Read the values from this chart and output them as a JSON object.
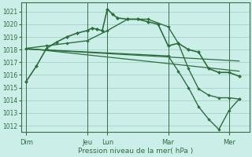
{
  "bg_color": "#cceee8",
  "grid_color": "#99ccbb",
  "line_color": "#2d6e3e",
  "ylabel": "Pression niveau de la mer( hPa )",
  "ylim": [
    1011.5,
    1021.7
  ],
  "yticks": [
    1012,
    1013,
    1014,
    1015,
    1016,
    1017,
    1018,
    1019,
    1020,
    1021
  ],
  "day_labels": [
    "Dim",
    "Jeu",
    "Lun",
    "Mar",
    "Mer"
  ],
  "day_tick_x": [
    0,
    24,
    32,
    56,
    80
  ],
  "xlim": [
    -2,
    88
  ],
  "vline_positions": [
    0,
    24,
    32,
    56,
    80
  ],
  "line1_x": [
    0,
    4,
    8,
    12,
    16,
    20,
    24,
    26,
    28,
    30,
    32,
    34,
    36,
    40,
    44,
    48,
    52,
    56,
    60,
    64,
    68,
    72,
    76,
    80,
    84
  ],
  "line1_y": [
    1015.5,
    1016.7,
    1018.1,
    1018.6,
    1019.0,
    1019.3,
    1019.5,
    1019.7,
    1019.6,
    1019.5,
    1021.2,
    1020.8,
    1020.5,
    1020.4,
    1020.4,
    1020.2,
    1020.0,
    1018.3,
    1018.5,
    1018.0,
    1017.8,
    1016.5,
    1016.2,
    1016.2,
    1015.9
  ],
  "line2_x": [
    0,
    8,
    16,
    24,
    32,
    40,
    48,
    56,
    60,
    64,
    68,
    72,
    76,
    80,
    84
  ],
  "line2_y": [
    1018.1,
    1018.3,
    1018.5,
    1018.7,
    1019.5,
    1020.4,
    1020.4,
    1019.8,
    1018.5,
    1016.5,
    1014.9,
    1014.4,
    1014.2,
    1014.2,
    1014.1
  ],
  "line3_x": [
    0,
    56,
    60,
    64,
    68,
    72,
    76,
    80,
    84
  ],
  "line3_y": [
    1018.05,
    1017.5,
    1016.3,
    1015.0,
    1013.5,
    1012.5,
    1011.7,
    1013.2,
    1014.1
  ],
  "trend1_x": [
    0,
    84
  ],
  "trend1_y": [
    1018.1,
    1016.3
  ],
  "trend2_x": [
    0,
    84
  ],
  "trend2_y": [
    1018.05,
    1017.1
  ]
}
